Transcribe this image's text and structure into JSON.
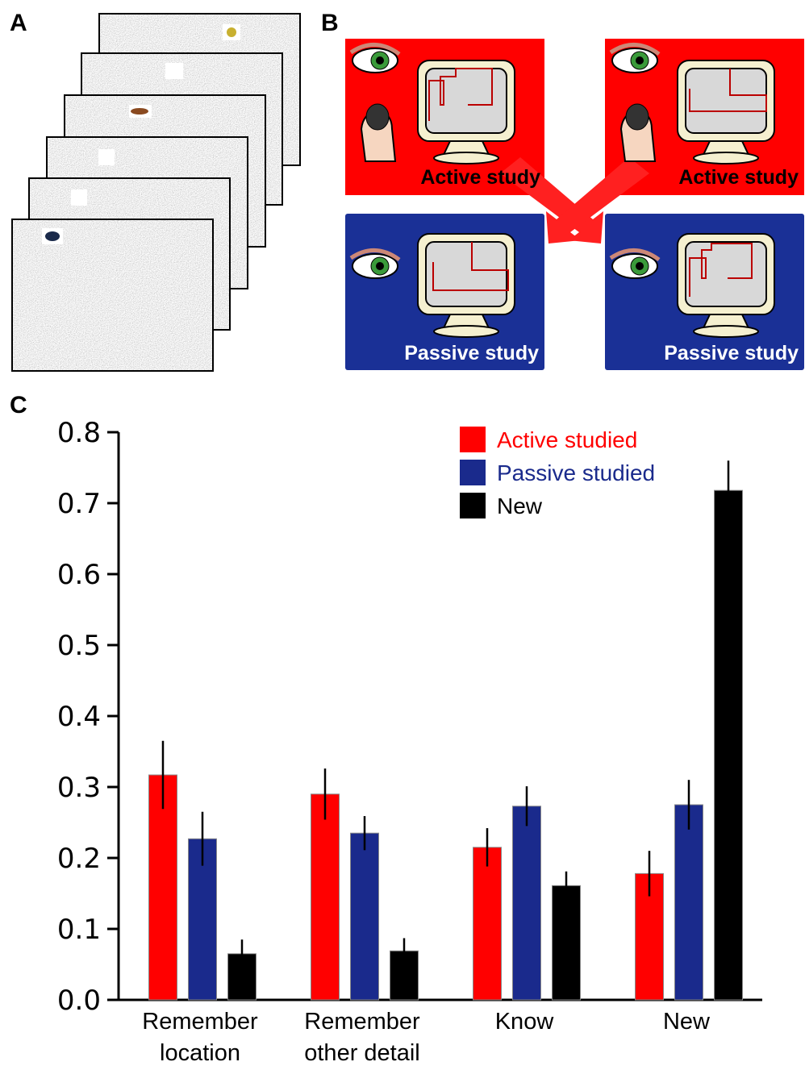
{
  "panels": [
    "A",
    "B",
    "C"
  ],
  "diagram": {
    "boxes": [
      "Active study",
      "Active study",
      "Passive study",
      "Passive study"
    ]
  },
  "chart_data": {
    "type": "bar",
    "categories": [
      "Remember\nlocation",
      "Remember\nother detail",
      "Know",
      "New"
    ],
    "series": [
      {
        "name": "Active studied",
        "color": "#ff0000",
        "values": [
          0.317,
          0.29,
          0.215,
          0.178
        ],
        "errors": [
          0.048,
          0.036,
          0.027,
          0.032
        ]
      },
      {
        "name": "Passive studied",
        "color": "#1a2a8c",
        "values": [
          0.227,
          0.235,
          0.273,
          0.275
        ],
        "errors": [
          0.038,
          0.024,
          0.028,
          0.035
        ]
      },
      {
        "name": "New",
        "color": "#000000",
        "values": [
          0.065,
          0.069,
          0.161,
          0.718
        ],
        "errors": [
          0.02,
          0.018,
          0.02,
          0.042
        ]
      }
    ],
    "ylim": [
      0,
      0.8
    ],
    "yticks": [
      {
        "value": 0,
        "label": "0.0"
      },
      0.1,
      0.2,
      0.3,
      0.4,
      0.5,
      0.6,
      0.7,
      0.8
    ],
    "legend": "top-right"
  }
}
